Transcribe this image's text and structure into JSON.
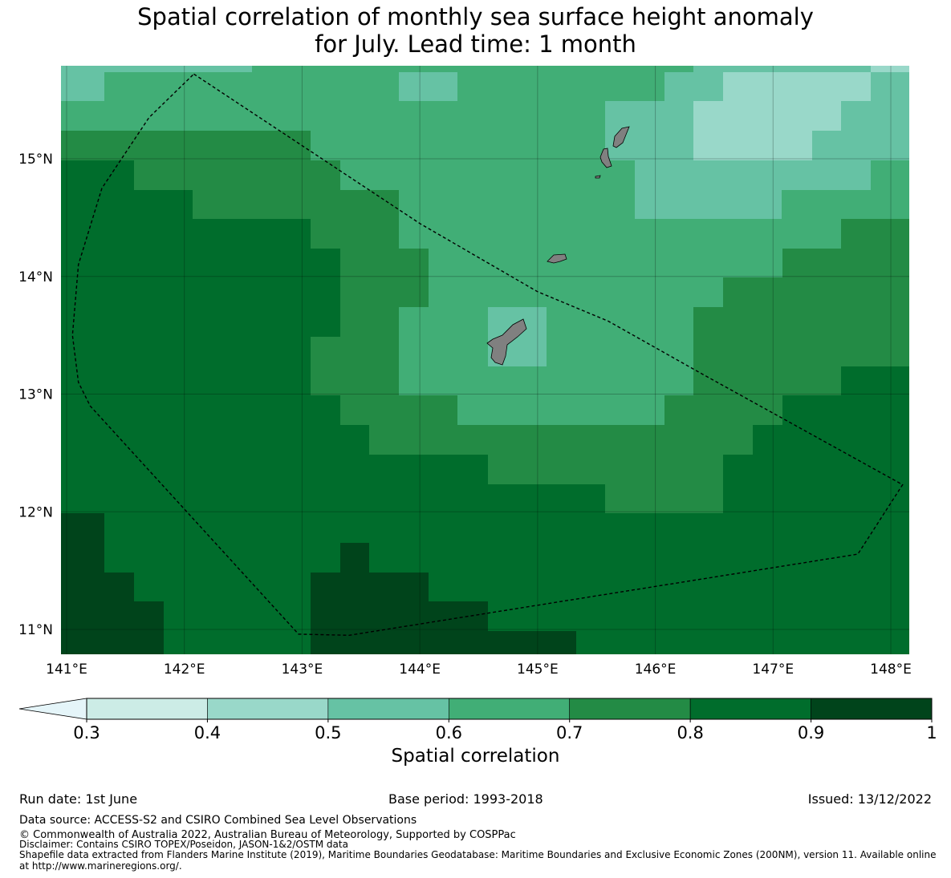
{
  "title_line1": "Spatial correlation of monthly sea surface height anomaly",
  "title_line2": "for July. Lead time: 1 month",
  "map": {
    "lon_range": [
      141,
      148.2
    ],
    "lat_range": [
      10.8,
      15.8
    ],
    "x_ticks": [
      "141°E",
      "142°E",
      "143°E",
      "144°E",
      "145°E",
      "146°E",
      "147°E",
      "148°E"
    ],
    "x_tick_values": [
      141,
      142,
      143,
      144,
      145,
      146,
      147,
      148
    ],
    "y_ticks": [
      "15°N",
      "14°N",
      "13°N",
      "12°N",
      "11°N"
    ],
    "y_tick_values": [
      15,
      14,
      13,
      12,
      11
    ],
    "grid": true,
    "eez_boundary": [
      [
        142.08,
        15.72
      ],
      [
        144.0,
        14.45
      ],
      [
        145.0,
        13.87
      ],
      [
        145.6,
        13.62
      ],
      [
        146.4,
        13.17
      ],
      [
        148.1,
        12.23
      ],
      [
        147.72,
        11.64
      ],
      [
        143.4,
        10.95
      ],
      [
        142.97,
        10.96
      ],
      [
        141.2,
        12.9
      ],
      [
        141.1,
        13.1
      ],
      [
        141.05,
        13.5
      ],
      [
        141.1,
        14.1
      ],
      [
        141.3,
        14.75
      ],
      [
        141.7,
        15.35
      ],
      [
        142.08,
        15.72
      ]
    ],
    "island_color": "#808080"
  },
  "colorbar": {
    "levels": [
      "0.3",
      "0.4",
      "0.5",
      "0.6",
      "0.7",
      "0.8",
      "0.9",
      "1"
    ],
    "colors": [
      "#e5f5f9",
      "#ccece6",
      "#99d8c9",
      "#66c2a4",
      "#41ae76",
      "#238b45",
      "#006d2c",
      "#00441b"
    ],
    "label": "Spatial correlation"
  },
  "footer": {
    "run_date": "Run date: 1st June",
    "base_period": "Base period: 1993-2018",
    "issued": "Issued: 13/12/2022",
    "data_source": "Data source: ACCESS-S2 and CSIRO Combined Sea Level Observations",
    "copyright": "© Commonwealth of Australia 2022, Australian Bureau of Meteorology, Supported by COSPPac",
    "disclaimer": "Disclaimer: Contains CSIRO TOPEX/Poseidon, JASON-1&2/OSTM data",
    "shapefile": "Shapefile data extracted from Flanders Marine Institute (2019), Maritime Boundaries Geodatabase: Maritime Boundaries and Exclusive Economic Zones (200NM), version 11. Available online",
    "shapefile2": "at http://www.marineregions.org/."
  }
}
